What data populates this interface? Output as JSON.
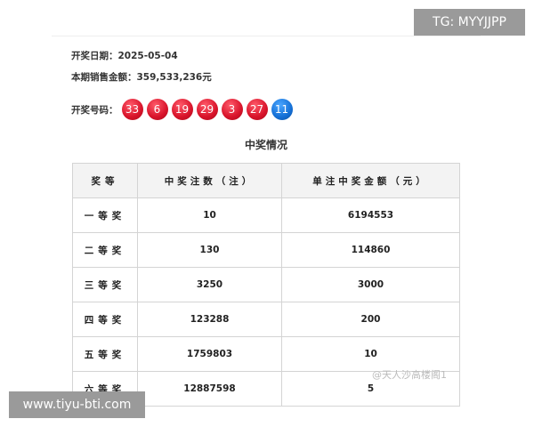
{
  "draw": {
    "date_label": "开奖日期：",
    "date": "2025-05-04",
    "sales_label": "本期销售金额：",
    "sales": "359,533,236元",
    "numbers_label": "开奖号码：",
    "red_balls": [
      "33",
      "6",
      "19",
      "29",
      "3",
      "27"
    ],
    "blue_balls": [
      "11"
    ],
    "colors": {
      "red_ball": "#d8132a",
      "blue_ball": "#1570d6"
    }
  },
  "prize": {
    "title": "中奖情况",
    "headers": [
      "奖等",
      "中奖注数（注）",
      "单注中奖金额（元）"
    ],
    "rows": [
      [
        "一等奖",
        "10",
        "6194553"
      ],
      [
        "二等奖",
        "130",
        "114860"
      ],
      [
        "三等奖",
        "3250",
        "3000"
      ],
      [
        "四等奖",
        "123288",
        "200"
      ],
      [
        "五等奖",
        "1759803",
        "10"
      ],
      [
        "六等奖",
        "12887598",
        "5"
      ]
    ]
  },
  "watermark": "@天人沙高楼阁1",
  "badges": {
    "top_right": "TG: MYYJJPP",
    "bottom_left": "www.tiyu-bti.com"
  }
}
